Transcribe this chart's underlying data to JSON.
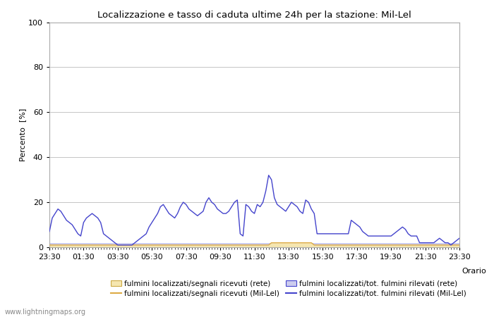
{
  "title": "Localizzazione e tasso di caduta ultime 24h per la stazione: Mil-Lel",
  "xlabel": "Orario",
  "ylabel": "Percento  [%]",
  "ylim": [
    0,
    100
  ],
  "yticks": [
    0,
    20,
    40,
    60,
    80,
    100
  ],
  "xtick_labels": [
    "23:30",
    "01:30",
    "03:30",
    "05:30",
    "07:30",
    "09:30",
    "11:30",
    "13:30",
    "15:30",
    "17:30",
    "19:30",
    "21:30",
    "23:30"
  ],
  "watermark": "www.lightningmaps.org",
  "background_color": "#ffffff",
  "plot_bg_color": "#ffffff",
  "grid_color": "#bbbbbb",
  "line_mil_lel_color": "#4444cc",
  "line_rete_color": "#ddaa44",
  "fill_rete_color": "#f5e6b0",
  "fill_mil_lel_color": "#ccccee",
  "n_points": 145,
  "blue_line_data": [
    7,
    13,
    15,
    17,
    16,
    14,
    12,
    11,
    10,
    8,
    6,
    5,
    11,
    13,
    14,
    15,
    14,
    13,
    11,
    6,
    5,
    4,
    3,
    2,
    1,
    1,
    1,
    1,
    1,
    1,
    2,
    3,
    4,
    5,
    6,
    9,
    11,
    13,
    15,
    18,
    19,
    17,
    15,
    14,
    13,
    15,
    18,
    20,
    19,
    17,
    16,
    15,
    14,
    15,
    16,
    20,
    22,
    20,
    19,
    17,
    16,
    15,
    15,
    16,
    18,
    20,
    21,
    6,
    5,
    19,
    18,
    16,
    15,
    19,
    18,
    20,
    25,
    32,
    30,
    22,
    19,
    18,
    17,
    16,
    18,
    20,
    19,
    18,
    16,
    15,
    21,
    20,
    17,
    15,
    6,
    6,
    6,
    6,
    6,
    6,
    6,
    6,
    6,
    6,
    6,
    6,
    12,
    11,
    10,
    9,
    7,
    6,
    5,
    5,
    5,
    5,
    5,
    5,
    5,
    5,
    5,
    6,
    7,
    8,
    9,
    8,
    6,
    5,
    5,
    5,
    2,
    2,
    2,
    2,
    2,
    2,
    3,
    4,
    3,
    2,
    2,
    1,
    2,
    3,
    4
  ],
  "orange_line_data": [
    1,
    1,
    1,
    1,
    1,
    1,
    1,
    1,
    1,
    1,
    1,
    1,
    1,
    1,
    1,
    1,
    1,
    1,
    1,
    1,
    1,
    1,
    1,
    1,
    1,
    1,
    1,
    1,
    1,
    1,
    1,
    1,
    1,
    1,
    1,
    1,
    1,
    1,
    1,
    1,
    1,
    1,
    1,
    1,
    1,
    1,
    1,
    1,
    1,
    1,
    1,
    1,
    1,
    1,
    1,
    1,
    1,
    1,
    1,
    1,
    1,
    1,
    1,
    1,
    1,
    1,
    1,
    1,
    1,
    1,
    1,
    1,
    1,
    1,
    1,
    1,
    1,
    1,
    2,
    2,
    2,
    2,
    2,
    2,
    2,
    2,
    2,
    2,
    2,
    2,
    2,
    2,
    2,
    1,
    1,
    1,
    1,
    1,
    1,
    1,
    1,
    1,
    1,
    1,
    1,
    1,
    1,
    1,
    1,
    1,
    1,
    1,
    1,
    1,
    1,
    1,
    1,
    1,
    1,
    1,
    1,
    1,
    1,
    1,
    1,
    1,
    1,
    1,
    1,
    1,
    1,
    1,
    1,
    1,
    1,
    1,
    1,
    1,
    1,
    1,
    1,
    1,
    1,
    1,
    1
  ],
  "fill_blue_data": [
    2,
    2,
    2,
    2,
    2,
    2,
    2,
    2,
    2,
    2,
    2,
    2,
    2,
    2,
    2,
    2,
    2,
    2,
    2,
    2,
    2,
    2,
    2,
    2,
    2,
    2,
    2,
    2,
    2,
    2,
    2,
    2,
    2,
    2,
    2,
    2,
    2,
    2,
    2,
    2,
    2,
    2,
    2,
    2,
    2,
    2,
    2,
    2,
    2,
    2,
    2,
    2,
    2,
    2,
    2,
    2,
    2,
    2,
    2,
    2,
    2,
    2,
    2,
    2,
    2,
    2,
    2,
    2,
    2,
    2,
    2,
    2,
    2,
    2,
    2,
    2,
    2,
    2,
    2,
    2,
    2,
    2,
    2,
    2,
    2,
    2,
    2,
    2,
    2,
    2,
    2,
    2,
    2,
    2,
    2,
    2,
    2,
    2,
    2,
    2,
    2,
    2,
    2,
    2,
    2,
    2,
    2,
    2,
    2,
    2,
    2,
    2,
    2,
    2,
    2,
    2,
    2,
    2,
    2,
    2,
    2,
    2,
    2,
    2,
    2,
    2,
    2,
    2,
    2,
    2,
    2,
    2,
    2,
    2,
    2,
    2,
    2,
    2,
    2,
    2,
    2,
    2,
    2,
    2,
    2
  ],
  "legend_row1": [
    "fulmini localizzati/segnali ricevuti (rete)",
    "fulmini localizzati/segnali ricevuti (Mil-Lel)"
  ],
  "legend_row2": [
    "fulmini localizzati/tot. fulmini rilevati (rete)",
    "fulmini localizzati/tot. fulmini rilevati (Mil-Lel)"
  ]
}
